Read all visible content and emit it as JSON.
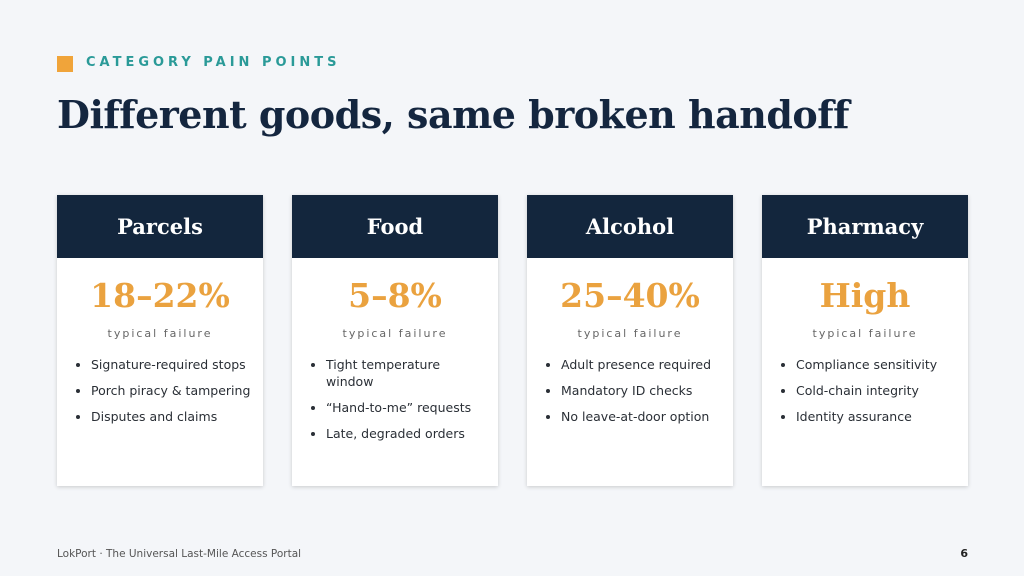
{
  "header": {
    "eyebrow": "CATEGORY PAIN POINTS",
    "title": "Different goods, same broken handoff"
  },
  "cards": [
    {
      "title": "Parcels",
      "stat": "18–22%",
      "stat_label": "typical failure",
      "bullets": [
        "Signature-required stops",
        "Porch piracy & tampering",
        "Disputes and claims"
      ]
    },
    {
      "title": "Food",
      "stat": "5–8%",
      "stat_label": "typical failure",
      "bullets": [
        "Tight temperature window",
        "“Hand-to-me” requests",
        "Late, degraded orders"
      ]
    },
    {
      "title": "Alcohol",
      "stat": "25–40%",
      "stat_label": "typical failure",
      "bullets": [
        "Adult presence required",
        "Mandatory ID checks",
        "No leave-at-door option"
      ]
    },
    {
      "title": "Pharmacy",
      "stat": "High",
      "stat_label": "typical failure",
      "bullets": [
        "Compliance sensitivity",
        "Cold-chain integrity",
        "Identity assurance"
      ]
    }
  ],
  "footer": {
    "text": "LokPort · The Universal Last-Mile Access Portal",
    "page": "6"
  }
}
